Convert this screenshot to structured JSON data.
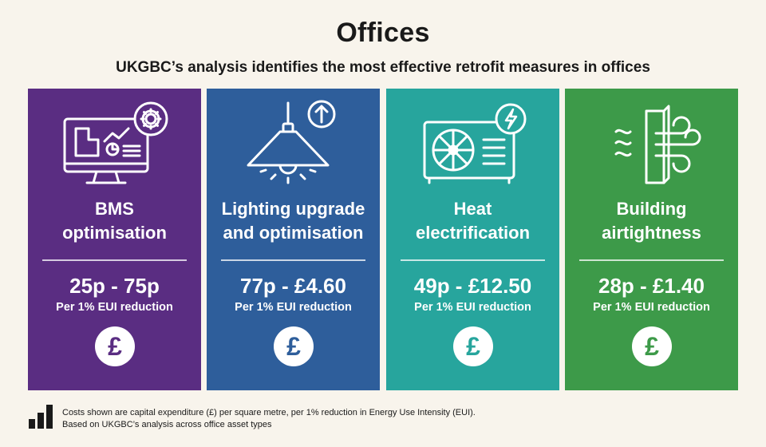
{
  "header": {
    "title": "Offices",
    "subtitle": "UKGBC’s analysis identifies the most effective retrofit measures in offices"
  },
  "cards": [
    {
      "line1": "BMS",
      "line2": "optimisation",
      "cost": "25p - 75p",
      "unit": "Per 1% EUI reduction",
      "icon": "monitor-gear-icon",
      "color": "#5a2d82"
    },
    {
      "line1": "Lighting upgrade",
      "line2": "and optimisation",
      "cost": "77p - £4.60",
      "unit": "Per 1% EUI reduction",
      "icon": "ceiling-lamp-icon",
      "color": "#2e5e9b"
    },
    {
      "line1": "Heat",
      "line2": "electrification",
      "cost": "49p - £12.50",
      "unit": "Per 1% EUI reduction",
      "icon": "heat-pump-icon",
      "color": "#27a59d"
    },
    {
      "line1": "Building",
      "line2": "airtightness",
      "cost": "28p - £1.40",
      "unit": "Per 1% EUI reduction",
      "icon": "building-wind-icon",
      "color": "#3d9a49"
    }
  ],
  "pound_symbol": "£",
  "footer": {
    "line1": "Costs shown are capital expenditure (£) per square metre, per 1% reduction in Energy Use Intensity (EUI).",
    "line2": "Based on UKGBC’s analysis across office asset types"
  }
}
